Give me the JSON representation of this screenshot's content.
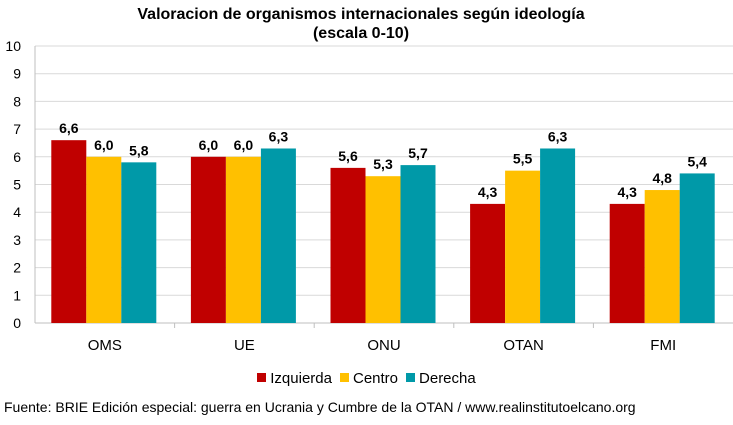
{
  "chart_data": {
    "type": "bar",
    "title": "Valoracion de organismos internacionales según ideología",
    "subtitle": "(escala 0-10)",
    "categories": [
      "OMS",
      "UE",
      "ONU",
      "OTAN",
      "FMI"
    ],
    "series": [
      {
        "name": "Izquierda",
        "color": "#c00000",
        "values": [
          6.6,
          6.0,
          5.6,
          4.3,
          4.3
        ],
        "labels": [
          "6,6",
          "6,0",
          "5,6",
          "4,3",
          "4,3"
        ]
      },
      {
        "name": "Centro",
        "color": "#ffc000",
        "values": [
          6.0,
          6.0,
          5.3,
          5.5,
          4.8
        ],
        "labels": [
          "6,0",
          "6,0",
          "5,3",
          "5,5",
          "4,8"
        ]
      },
      {
        "name": "Derecha",
        "color": "#0099a8",
        "values": [
          5.8,
          6.3,
          5.7,
          6.3,
          5.4
        ],
        "labels": [
          "5,8",
          "6,3",
          "5,7",
          "6,3",
          "5,4"
        ]
      }
    ],
    "ylim": [
      0,
      10
    ],
    "yticks": [
      "0",
      "1",
      "2",
      "3",
      "4",
      "5",
      "6",
      "7",
      "8",
      "9",
      "10"
    ],
    "xlabel": "",
    "ylabel": "",
    "grid": true,
    "legend_position": "bottom"
  },
  "footer": {
    "source": "Fuente: BRIE Edición especial: guerra en Ucrania y Cumbre de la OTAN / www.realinstitutoelcano.org"
  }
}
